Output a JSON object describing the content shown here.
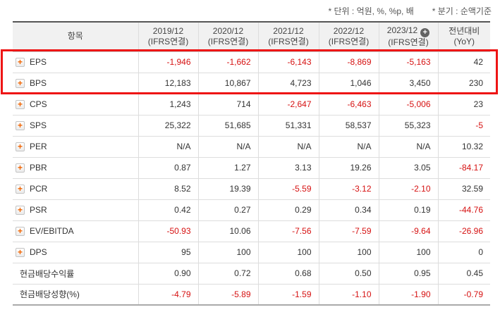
{
  "notes": {
    "unit": "* 단위 : 억원, %, %p, 배",
    "basis": "* 분기 : 순액기준"
  },
  "table": {
    "item_header": "항목",
    "columns": [
      {
        "period": "2019/12",
        "standard": "(IFRS연결)",
        "add_badge": false
      },
      {
        "period": "2020/12",
        "standard": "(IFRS연결)",
        "add_badge": false
      },
      {
        "period": "2021/12",
        "standard": "(IFRS연결)",
        "add_badge": false
      },
      {
        "period": "2022/12",
        "standard": "(IFRS연결)",
        "add_badge": false
      },
      {
        "period": "2023/12",
        "standard": "(IFRS연결)",
        "add_badge": true
      },
      {
        "period": "전년대비",
        "standard": "(YoY)",
        "add_badge": false
      }
    ],
    "rows": [
      {
        "label": "EPS",
        "expandable": true,
        "values": [
          "-1,946",
          "-1,662",
          "-6,143",
          "-8,869",
          "-5,163",
          "42"
        ]
      },
      {
        "label": "BPS",
        "expandable": true,
        "values": [
          "12,183",
          "10,867",
          "4,723",
          "1,046",
          "3,450",
          "230"
        ]
      },
      {
        "label": "CPS",
        "expandable": true,
        "values": [
          "1,243",
          "714",
          "-2,647",
          "-6,463",
          "-5,006",
          "23"
        ]
      },
      {
        "label": "SPS",
        "expandable": true,
        "values": [
          "25,322",
          "51,685",
          "51,331",
          "58,537",
          "55,323",
          "-5"
        ]
      },
      {
        "label": "PER",
        "expandable": true,
        "values": [
          "N/A",
          "N/A",
          "N/A",
          "N/A",
          "N/A",
          "10.32"
        ]
      },
      {
        "label": "PBR",
        "expandable": true,
        "values": [
          "0.87",
          "1.27",
          "3.13",
          "19.26",
          "3.05",
          "-84.17"
        ]
      },
      {
        "label": "PCR",
        "expandable": true,
        "values": [
          "8.52",
          "19.39",
          "-5.59",
          "-3.12",
          "-2.10",
          "32.59"
        ]
      },
      {
        "label": "PSR",
        "expandable": true,
        "values": [
          "0.42",
          "0.27",
          "0.29",
          "0.34",
          "0.19",
          "-44.76"
        ]
      },
      {
        "label": "EV/EBITDA",
        "expandable": true,
        "values": [
          "-50.93",
          "10.06",
          "-7.56",
          "-7.59",
          "-9.64",
          "-26.96"
        ]
      },
      {
        "label": "DPS",
        "expandable": true,
        "values": [
          "95",
          "100",
          "100",
          "100",
          "100",
          "0"
        ]
      },
      {
        "label": "현금배당수익률",
        "expandable": false,
        "values": [
          "0.90",
          "0.72",
          "0.68",
          "0.50",
          "0.95",
          "0.45"
        ]
      },
      {
        "label": "현금배당성향(%)",
        "expandable": false,
        "values": [
          "-4.79",
          "-5.89",
          "-1.59",
          "-1.10",
          "-1.90",
          "-0.79"
        ]
      }
    ]
  },
  "highlight": {
    "row_labels": [
      "EPS",
      "BPS"
    ],
    "border_color": "#ee1515"
  },
  "icons": {
    "expand_row_icon": "+",
    "column_add_icon": "+"
  },
  "colors": {
    "negative_value": "#d61111",
    "header_background": "#f1f1f1",
    "header_top_border": "#555555",
    "grid_line": "#dddddd",
    "table_bottom_border": "#aaaaaa"
  }
}
